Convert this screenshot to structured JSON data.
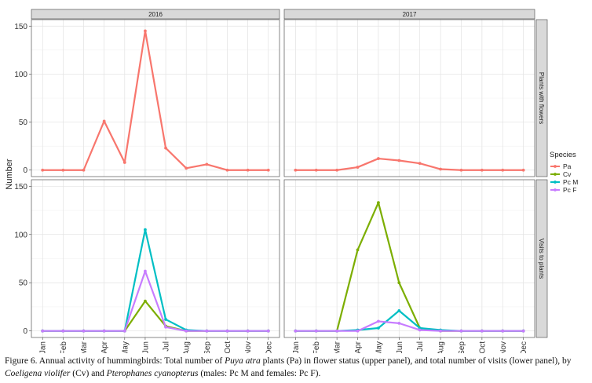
{
  "chart_data": {
    "type": "line",
    "ylabel": "Number",
    "months": [
      "Jan",
      "Feb",
      "Mar",
      "Apr",
      "May",
      "Jun",
      "Jul",
      "Aug",
      "Sep",
      "Oct",
      "Nov",
      "Dec"
    ],
    "column_strips": [
      "2016",
      "2017"
    ],
    "row_strips": [
      "Plants with flowers",
      "Visits to plants"
    ],
    "ylim": [
      0,
      150
    ],
    "yticks": [
      0,
      50,
      100,
      150
    ],
    "grid": true,
    "legend": {
      "title": "Species",
      "placement": "right",
      "entries": [
        {
          "label": "Pa",
          "color": "#F8766D"
        },
        {
          "label": "Cv",
          "color": "#7CAE00"
        },
        {
          "label": "Pc M",
          "color": "#00BFC4"
        },
        {
          "label": "Pc F",
          "color": "#C77CFF"
        }
      ]
    },
    "panels": [
      {
        "column": "2016",
        "row": "Plants with flowers",
        "series": [
          {
            "name": "Pa",
            "color": "#F8766D",
            "values": [
              0,
              0,
              0,
              51,
              8,
              145,
              23,
              2,
              6,
              0,
              0,
              0
            ]
          }
        ]
      },
      {
        "column": "2017",
        "row": "Plants with flowers",
        "series": [
          {
            "name": "Pa",
            "color": "#F8766D",
            "values": [
              0,
              0,
              0,
              3,
              12,
              10,
              7,
              1,
              0,
              0,
              0,
              0
            ]
          }
        ]
      },
      {
        "column": "2016",
        "row": "Visits to plants",
        "series": [
          {
            "name": "Cv",
            "color": "#7CAE00",
            "values": [
              0,
              0,
              0,
              0,
              0,
              31,
              5,
              0,
              0,
              0,
              0,
              0
            ]
          },
          {
            "name": "Pc M",
            "color": "#00BFC4",
            "values": [
              0,
              0,
              0,
              0,
              0,
              105,
              12,
              1,
              0,
              0,
              0,
              0
            ]
          },
          {
            "name": "Pc F",
            "color": "#C77CFF",
            "values": [
              0,
              0,
              0,
              0,
              0,
              62,
              4,
              0,
              0,
              0,
              0,
              0
            ]
          }
        ]
      },
      {
        "column": "2017",
        "row": "Visits to plants",
        "series": [
          {
            "name": "Cv",
            "color": "#7CAE00",
            "values": [
              0,
              0,
              0,
              84,
              133,
              50,
              3,
              0,
              0,
              0,
              0,
              0
            ]
          },
          {
            "name": "Pc M",
            "color": "#00BFC4",
            "values": [
              0,
              0,
              0,
              1,
              3,
              21,
              3,
              1,
              0,
              0,
              0,
              0
            ]
          },
          {
            "name": "Pc F",
            "color": "#C77CFF",
            "values": [
              0,
              0,
              0,
              0,
              10,
              8,
              1,
              0,
              0,
              0,
              0,
              0
            ]
          }
        ]
      }
    ]
  },
  "caption": {
    "text_1": "Figure 6. Annual activity of hummingbirds: Total number of ",
    "italic_1": "Puya atra",
    "text_2": " plants (Pa) in flower status (upper panel), and total number of visits (lower panel), by ",
    "italic_2": "Coeligena violifer",
    "text_3": " (Cv) and ",
    "italic_3": "Pterophanes cyanopterus",
    "text_4": " (males: Pc M and females: Pc F)."
  }
}
